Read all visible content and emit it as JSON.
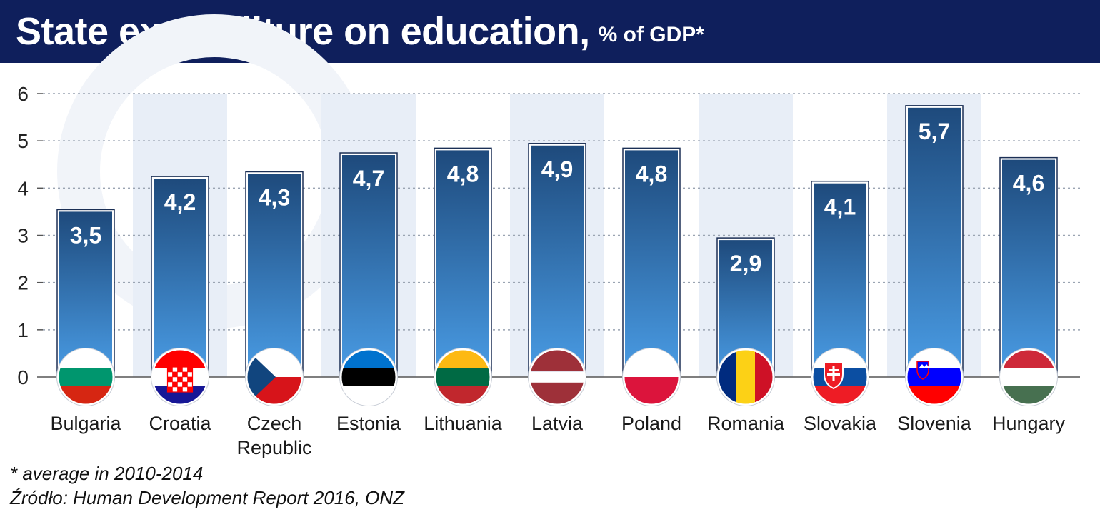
{
  "header": {
    "title": "State expenditure on education,",
    "subtitle": "% of GDP*"
  },
  "footer": {
    "note": "* average in 2010-2014",
    "source": "Źródło: Human Development Report 2016, ONZ"
  },
  "colors": {
    "header_bg": "#0f1f5c",
    "bar_top": "#1e4a7c",
    "bar_bottom": "#4a9de6",
    "band": "#e8eef7"
  },
  "chart_data": {
    "type": "bar",
    "title": "State expenditure on education,",
    "subtitle": "% of GDP*",
    "ylim": [
      0,
      6
    ],
    "yticks": [
      0,
      1,
      2,
      3,
      4,
      5,
      6
    ],
    "grid": true,
    "categories": [
      [
        "Bulgaria"
      ],
      [
        "Croatia"
      ],
      [
        "Czech",
        "Republic"
      ],
      [
        "Estonia"
      ],
      [
        "Lithuania"
      ],
      [
        "Latvia"
      ],
      [
        "Poland"
      ],
      [
        "Romania"
      ],
      [
        "Slovakia"
      ],
      [
        "Slovenia"
      ],
      [
        "Hungary"
      ]
    ],
    "values": [
      3.5,
      4.2,
      4.3,
      4.7,
      4.8,
      4.9,
      4.8,
      2.9,
      4.1,
      5.7,
      4.6
    ],
    "value_labels": [
      "3,5",
      "4,2",
      "4,3",
      "4,7",
      "4,8",
      "4,9",
      "4,8",
      "2,9",
      "4,1",
      "5,7",
      "4,6"
    ],
    "flags": [
      {
        "icon": "bulgaria-flag-icon",
        "type": "h",
        "colors": [
          "#ffffff",
          "#00966e",
          "#d62612"
        ]
      },
      {
        "icon": "croatia-flag-icon",
        "type": "h",
        "colors": [
          "#ff0000",
          "#ffffff",
          "#171796"
        ],
        "emblem": "croatia"
      },
      {
        "icon": "czech-flag-icon",
        "type": "czech",
        "colors": [
          "#ffffff",
          "#d7141a",
          "#11457e"
        ]
      },
      {
        "icon": "estonia-flag-icon",
        "type": "h",
        "colors": [
          "#0072ce",
          "#000000",
          "#ffffff"
        ]
      },
      {
        "icon": "lithuania-flag-icon",
        "type": "h",
        "colors": [
          "#fdb913",
          "#006a44",
          "#c1272d"
        ]
      },
      {
        "icon": "latvia-flag-icon",
        "type": "hw",
        "colors": [
          "#9e3039",
          "#ffffff",
          "#9e3039"
        ]
      },
      {
        "icon": "poland-flag-icon",
        "type": "h2",
        "colors": [
          "#ffffff",
          "#dc143c"
        ]
      },
      {
        "icon": "romania-flag-icon",
        "type": "v",
        "colors": [
          "#002b7f",
          "#fcd116",
          "#ce1126"
        ]
      },
      {
        "icon": "slovakia-flag-icon",
        "type": "h",
        "colors": [
          "#ffffff",
          "#0b4ea2",
          "#ee1c25"
        ],
        "emblem": "slovakia"
      },
      {
        "icon": "slovenia-flag-icon",
        "type": "h",
        "colors": [
          "#ffffff",
          "#0000ff",
          "#ff0000"
        ],
        "emblem": "slovenia"
      },
      {
        "icon": "hungary-flag-icon",
        "type": "h",
        "colors": [
          "#ce2939",
          "#ffffff",
          "#477050"
        ]
      }
    ]
  }
}
